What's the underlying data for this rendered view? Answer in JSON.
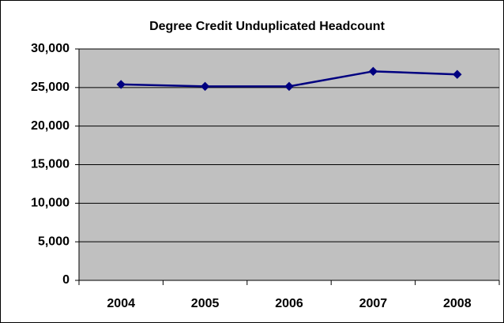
{
  "chart_data": {
    "type": "line",
    "title": "Degree Credit Unduplicated Headcount",
    "categories": [
      "2004",
      "2005",
      "2006",
      "2007",
      "2008"
    ],
    "values": [
      25400,
      25150,
      25150,
      27100,
      26700
    ],
    "color": "#000080",
    "ylim": [
      0,
      30000
    ],
    "yticks": [
      0,
      {
        "value": 5000,
        "label": "5,000"
      },
      {
        "value": 10000,
        "label": "10,000"
      },
      {
        "value": 15000,
        "label": "15,000"
      },
      {
        "value": 20000,
        "label": "20,000"
      },
      {
        "value": 25000,
        "label": "25,000"
      },
      {
        "value": 30000,
        "label": "30,000"
      }
    ],
    "grid": true
  }
}
